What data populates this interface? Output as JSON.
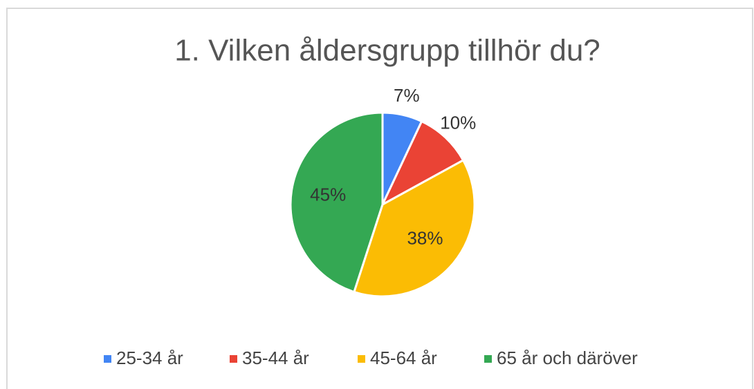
{
  "chart_data": {
    "type": "pie",
    "title": "1. Vilken åldersgrupp tillhör du?",
    "categories": [
      "25-34 år",
      "35-44 år",
      "45-64 år",
      "65 år och däröver"
    ],
    "values": [
      7,
      10,
      38,
      45
    ],
    "value_labels": [
      "7%",
      "10%",
      "38%",
      "45%"
    ],
    "colors": [
      "#4285f4",
      "#ea4335",
      "#fbbc04",
      "#34a853"
    ],
    "legend": "bottom"
  }
}
